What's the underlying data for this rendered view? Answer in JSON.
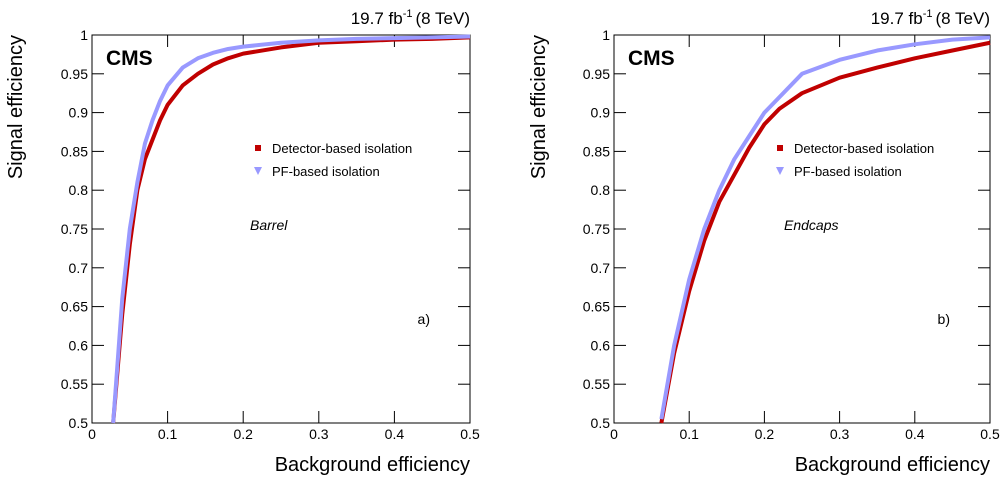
{
  "chart_data": [
    {
      "type": "line",
      "lumi": "19.7 fb",
      "lumi_exp": "-1",
      "energy": "(8 TeV)",
      "experiment": "CMS",
      "region": "Barrel",
      "panel": "a)",
      "xlabel": "Background efficiency",
      "ylabel": "Signal efficiency",
      "xlim": [
        0,
        0.5
      ],
      "ylim": [
        0.5,
        1
      ],
      "xticks": [
        0,
        0.1,
        0.2,
        0.3,
        0.4,
        0.5
      ],
      "yticks": [
        0.5,
        0.55,
        0.6,
        0.65,
        0.7,
        0.75,
        0.8,
        0.85,
        0.9,
        0.95,
        1
      ],
      "x": [
        0.028,
        0.04,
        0.05,
        0.06,
        0.07,
        0.08,
        0.09,
        0.1,
        0.12,
        0.14,
        0.16,
        0.18,
        0.2,
        0.25,
        0.3,
        0.35,
        0.4,
        0.45,
        0.5
      ],
      "series": [
        {
          "name": "Detector-based isolation",
          "color": "#c00000",
          "marker": "square",
          "values": [
            0.5,
            0.64,
            0.73,
            0.8,
            0.84,
            0.865,
            0.89,
            0.91,
            0.935,
            0.95,
            0.962,
            0.97,
            0.976,
            0.984,
            0.99,
            0.992,
            0.994,
            0.995,
            0.997
          ]
        },
        {
          "name": "PF-based isolation",
          "color": "#9999ff",
          "marker": "triangle-down",
          "values": [
            0.5,
            0.66,
            0.75,
            0.81,
            0.86,
            0.89,
            0.915,
            0.935,
            0.958,
            0.97,
            0.977,
            0.982,
            0.985,
            0.99,
            0.993,
            0.995,
            0.996,
            0.997,
            0.998
          ]
        }
      ]
    },
    {
      "type": "line",
      "lumi": "19.7 fb",
      "lumi_exp": "-1",
      "energy": "(8 TeV)",
      "experiment": "CMS",
      "region": "Endcaps",
      "panel": "b)",
      "xlabel": "Background efficiency",
      "ylabel": "Signal efficiency",
      "xlim": [
        0,
        0.5
      ],
      "ylim": [
        0.5,
        1
      ],
      "xticks": [
        0,
        0.1,
        0.2,
        0.3,
        0.4,
        0.5
      ],
      "yticks": [
        0.5,
        0.55,
        0.6,
        0.65,
        0.7,
        0.75,
        0.8,
        0.85,
        0.9,
        0.95,
        1
      ],
      "x": [
        0.063,
        0.08,
        0.1,
        0.12,
        0.14,
        0.16,
        0.18,
        0.2,
        0.22,
        0.25,
        0.3,
        0.35,
        0.4,
        0.45,
        0.5
      ],
      "series": [
        {
          "name": "Detector-based isolation",
          "color": "#c00000",
          "marker": "square",
          "values": [
            0.5,
            0.59,
            0.67,
            0.735,
            0.785,
            0.82,
            0.855,
            0.885,
            0.905,
            0.925,
            0.945,
            0.958,
            0.97,
            0.98,
            0.99
          ]
        },
        {
          "name": "PF-based isolation",
          "color": "#9999ff",
          "marker": "triangle-down",
          "values": [
            0.505,
            0.6,
            0.685,
            0.75,
            0.8,
            0.84,
            0.87,
            0.9,
            0.92,
            0.95,
            0.968,
            0.98,
            0.988,
            0.994,
            0.997
          ]
        }
      ]
    }
  ]
}
